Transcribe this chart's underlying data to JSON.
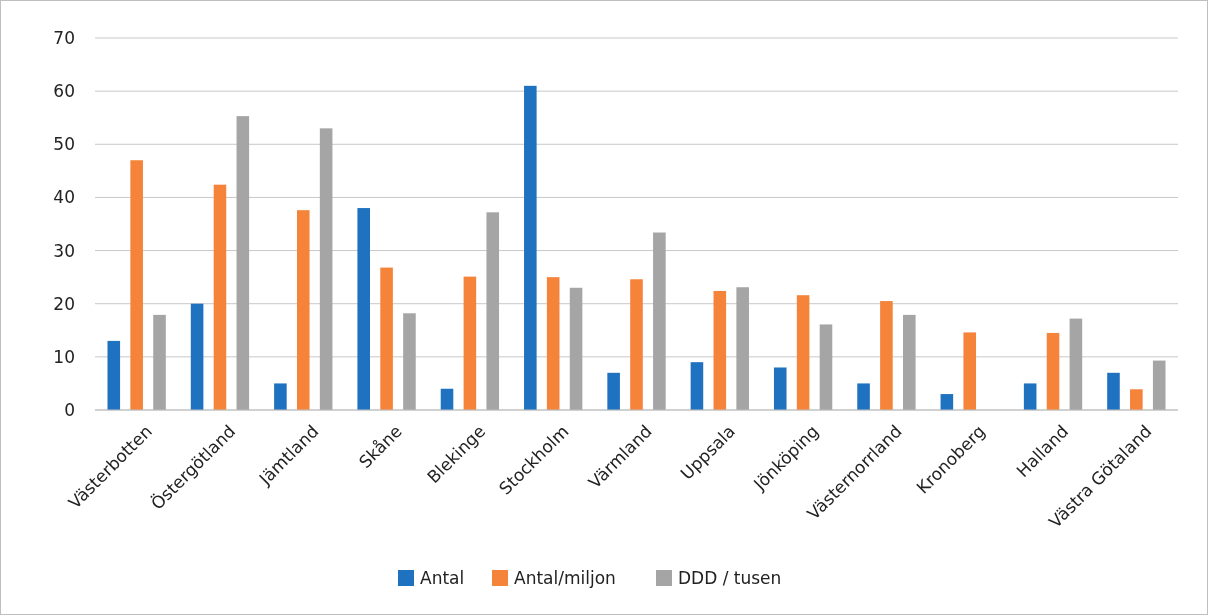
{
  "chart_data": {
    "type": "bar",
    "categories": [
      "Västerbotten",
      "Östergötland",
      "Jämtland",
      "Skåne",
      "Blekinge",
      "Stockholm",
      "Värmland",
      "Uppsala",
      "Jönköping",
      "Västernorrland",
      "Kronoberg",
      "Halland",
      "Västra Götaland"
    ],
    "series": [
      {
        "name": "Antal",
        "color": "#1f72bf",
        "values": [
          13,
          20,
          5,
          38,
          4,
          61,
          7,
          9,
          8,
          5,
          3,
          5,
          7
        ]
      },
      {
        "name": "Antal/miljon",
        "color": "#f5843a",
        "values": [
          47,
          42.4,
          37.6,
          26.8,
          25.1,
          25,
          24.6,
          22.4,
          21.6,
          20.5,
          14.6,
          14.5,
          3.9
        ]
      },
      {
        "name": "DDD / tusen",
        "color": "#a5a5a5",
        "values": [
          17.9,
          55.3,
          53,
          18.2,
          37.2,
          23,
          33.4,
          23.1,
          16.1,
          17.9,
          null,
          17.2,
          9.3
        ]
      }
    ],
    "ylim": [
      0,
      70
    ],
    "yticks": [
      0,
      10,
      20,
      30,
      40,
      50,
      60,
      70
    ],
    "grid": "y",
    "legend": "bottom"
  }
}
